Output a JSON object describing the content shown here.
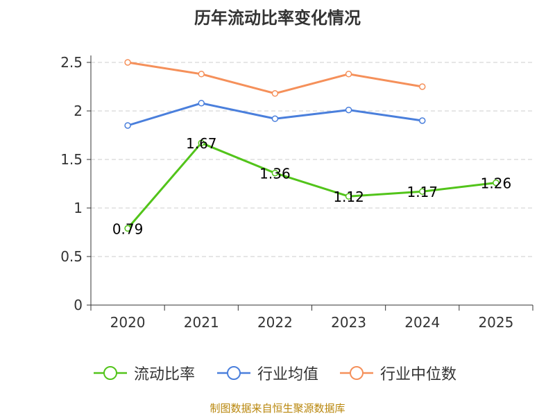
{
  "chart_data": {
    "type": "line",
    "title": "历年流动比率变化情况",
    "categories": [
      "2020",
      "2021",
      "2022",
      "2023",
      "2024",
      "2025"
    ],
    "ylim": [
      0,
      2.5
    ],
    "yticks": [
      "0",
      "0.5",
      "1",
      "1.5",
      "2",
      "2.5"
    ],
    "ytick_values": [
      0,
      0.5,
      1,
      1.5,
      2,
      2.5
    ],
    "grid": true,
    "legend_position": "bottom",
    "series": [
      {
        "name": "流动比率",
        "color": "#52c41a",
        "values": [
          0.79,
          1.67,
          1.36,
          1.12,
          1.17,
          1.26
        ],
        "labels": [
          "0.79",
          "1.67",
          "1.36",
          "1.12",
          "1.17",
          "1.26"
        ]
      },
      {
        "name": "行业均值",
        "color": "#4a7fdc",
        "values": [
          1.85,
          2.08,
          1.92,
          2.01,
          1.9,
          null
        ]
      },
      {
        "name": "行业中位数",
        "color": "#f5905a",
        "values": [
          2.5,
          2.38,
          2.18,
          2.38,
          2.25,
          null
        ]
      }
    ]
  },
  "footer": {
    "source": "制图数据来自恒生聚源数据库"
  }
}
